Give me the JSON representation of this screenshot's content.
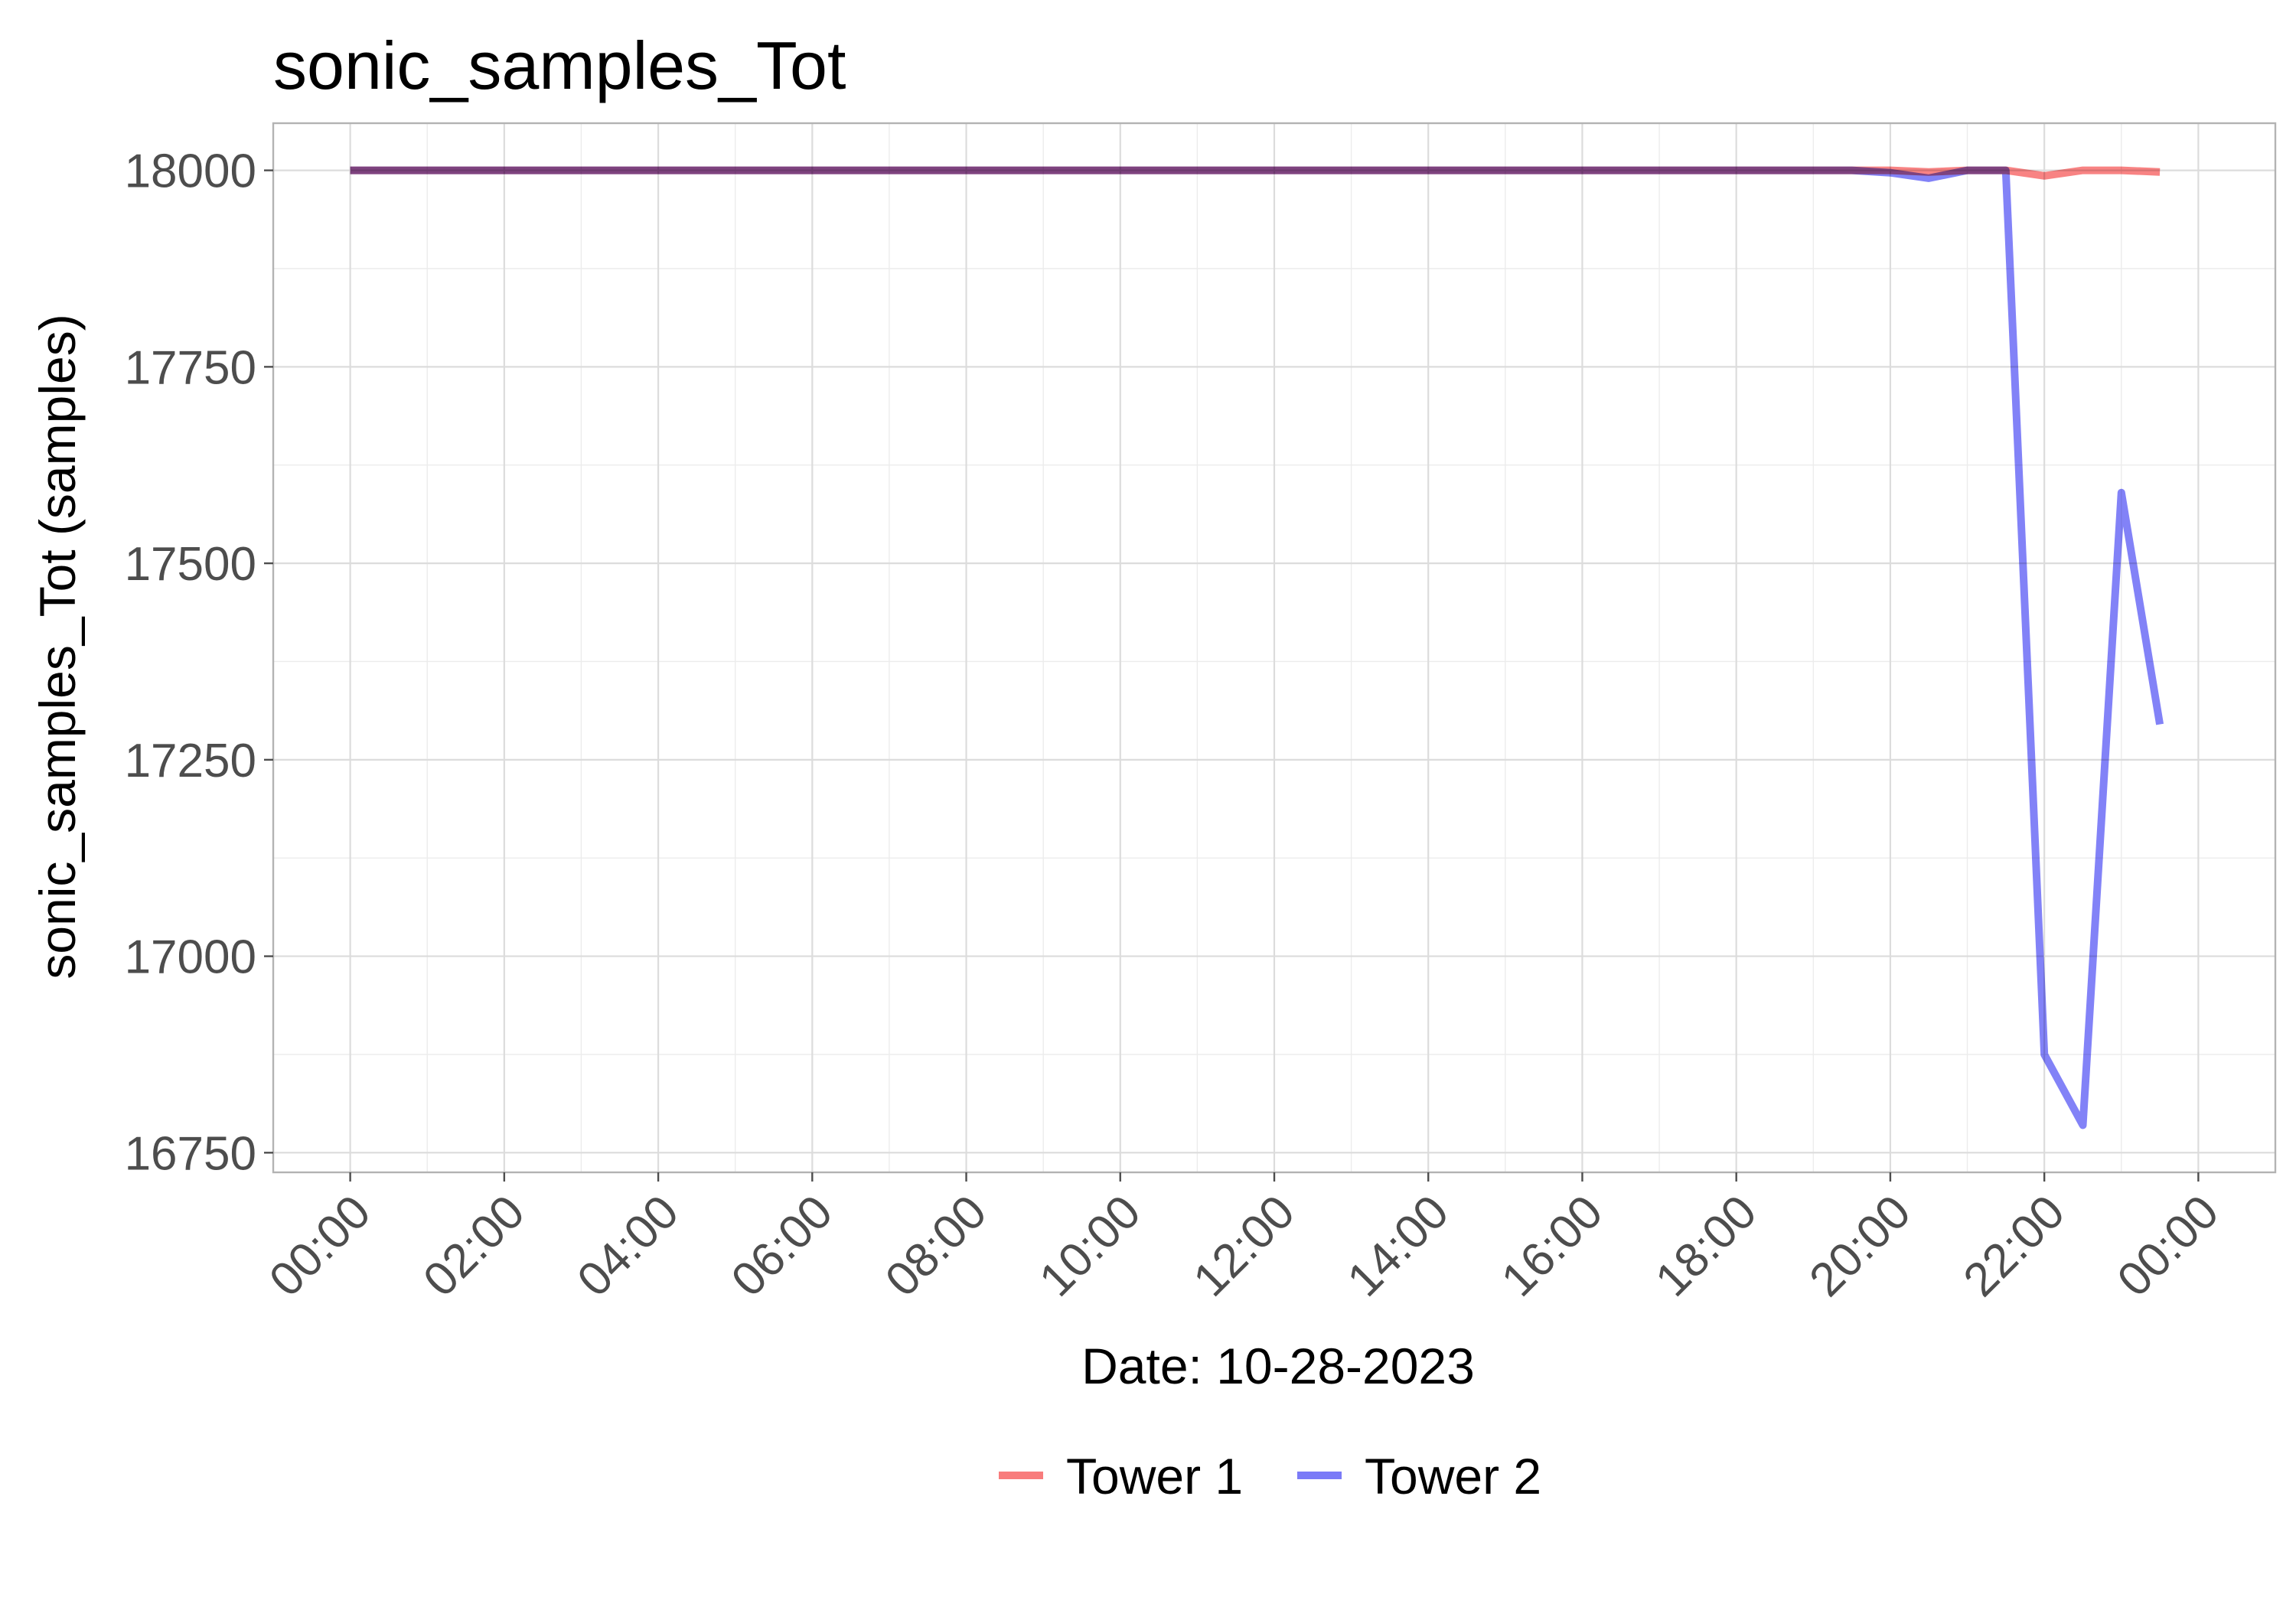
{
  "chart_data": {
    "type": "line",
    "title": "sonic_samples_Tot",
    "xlabel": "Date: 10-28-2023",
    "ylabel": "sonic_samples_Tot (samples)",
    "x_unit": "time of day",
    "xlim": [
      "23:00 (Oct 27)",
      "01:00 (Oct 29)"
    ],
    "ylim": [
      16725,
      18060
    ],
    "grid": true,
    "legend_position": "bottom",
    "x_tick_labels": [
      "00:00",
      "02:00",
      "04:00",
      "06:00",
      "08:00",
      "10:00",
      "12:00",
      "14:00",
      "16:00",
      "18:00",
      "20:00",
      "22:00",
      "00:00"
    ],
    "y_ticks": [
      16750,
      17000,
      17250,
      17500,
      17750,
      18000
    ],
    "y_tick_labels": [
      "16750",
      "17000",
      "17250",
      "17500",
      "17750",
      "18000"
    ],
    "series": [
      {
        "name": "Tower 1",
        "color": "#f87c7c",
        "x": [
          "00:00",
          "00:30",
          "01:00",
          "01:30",
          "02:00",
          "02:30",
          "03:00",
          "03:30",
          "04:00",
          "04:30",
          "05:00",
          "05:30",
          "06:00",
          "06:30",
          "07:00",
          "07:30",
          "08:00",
          "08:30",
          "09:00",
          "09:30",
          "10:00",
          "10:30",
          "11:00",
          "11:30",
          "12:00",
          "12:30",
          "13:00",
          "13:30",
          "14:00",
          "14:30",
          "15:00",
          "15:30",
          "16:00",
          "16:30",
          "17:00",
          "17:30",
          "18:00",
          "18:30",
          "19:00",
          "19:30",
          "20:00",
          "20:30",
          "21:00",
          "21:30",
          "22:00",
          "22:30",
          "23:00",
          "23:30"
        ],
        "values": [
          18000,
          18000,
          18000,
          18000,
          18000,
          18000,
          18000,
          18000,
          18000,
          18000,
          18000,
          18000,
          18000,
          18000,
          18000,
          18000,
          18000,
          18000,
          18000,
          18000,
          18000,
          18000,
          18000,
          18000,
          18000,
          18000,
          18000,
          18000,
          18000,
          18000,
          18000,
          18000,
          18000,
          18000,
          18000,
          18000,
          18000,
          18000,
          18000,
          18000,
          18000,
          17998,
          18000,
          18000,
          17993,
          18000,
          18000,
          17998
        ]
      },
      {
        "name": "Tower 2",
        "color": "#7b7bf7",
        "x": [
          "00:00",
          "00:30",
          "01:00",
          "01:30",
          "02:00",
          "02:30",
          "03:00",
          "03:30",
          "04:00",
          "04:30",
          "05:00",
          "05:30",
          "06:00",
          "06:30",
          "07:00",
          "07:30",
          "08:00",
          "08:30",
          "09:00",
          "09:30",
          "10:00",
          "10:30",
          "11:00",
          "11:30",
          "12:00",
          "12:30",
          "13:00",
          "13:30",
          "14:00",
          "14:30",
          "15:00",
          "15:30",
          "16:00",
          "16:30",
          "17:00",
          "17:30",
          "18:00",
          "18:30",
          "19:00",
          "19:30",
          "20:00",
          "20:30",
          "21:00",
          "21:30",
          "22:00",
          "22:30",
          "23:00",
          "23:30"
        ],
        "values": [
          18000,
          18000,
          18000,
          18000,
          18000,
          18000,
          18000,
          18000,
          18000,
          18000,
          18000,
          18000,
          18000,
          18000,
          18000,
          18000,
          18000,
          18000,
          18000,
          18000,
          18000,
          18000,
          18000,
          18000,
          18000,
          18000,
          18000,
          18000,
          18000,
          18000,
          18000,
          18000,
          18000,
          18000,
          18000,
          18000,
          18000,
          18000,
          18000,
          18000,
          17997,
          17990,
          18000,
          18000,
          16875,
          16785,
          17590,
          17295
        ]
      }
    ]
  }
}
